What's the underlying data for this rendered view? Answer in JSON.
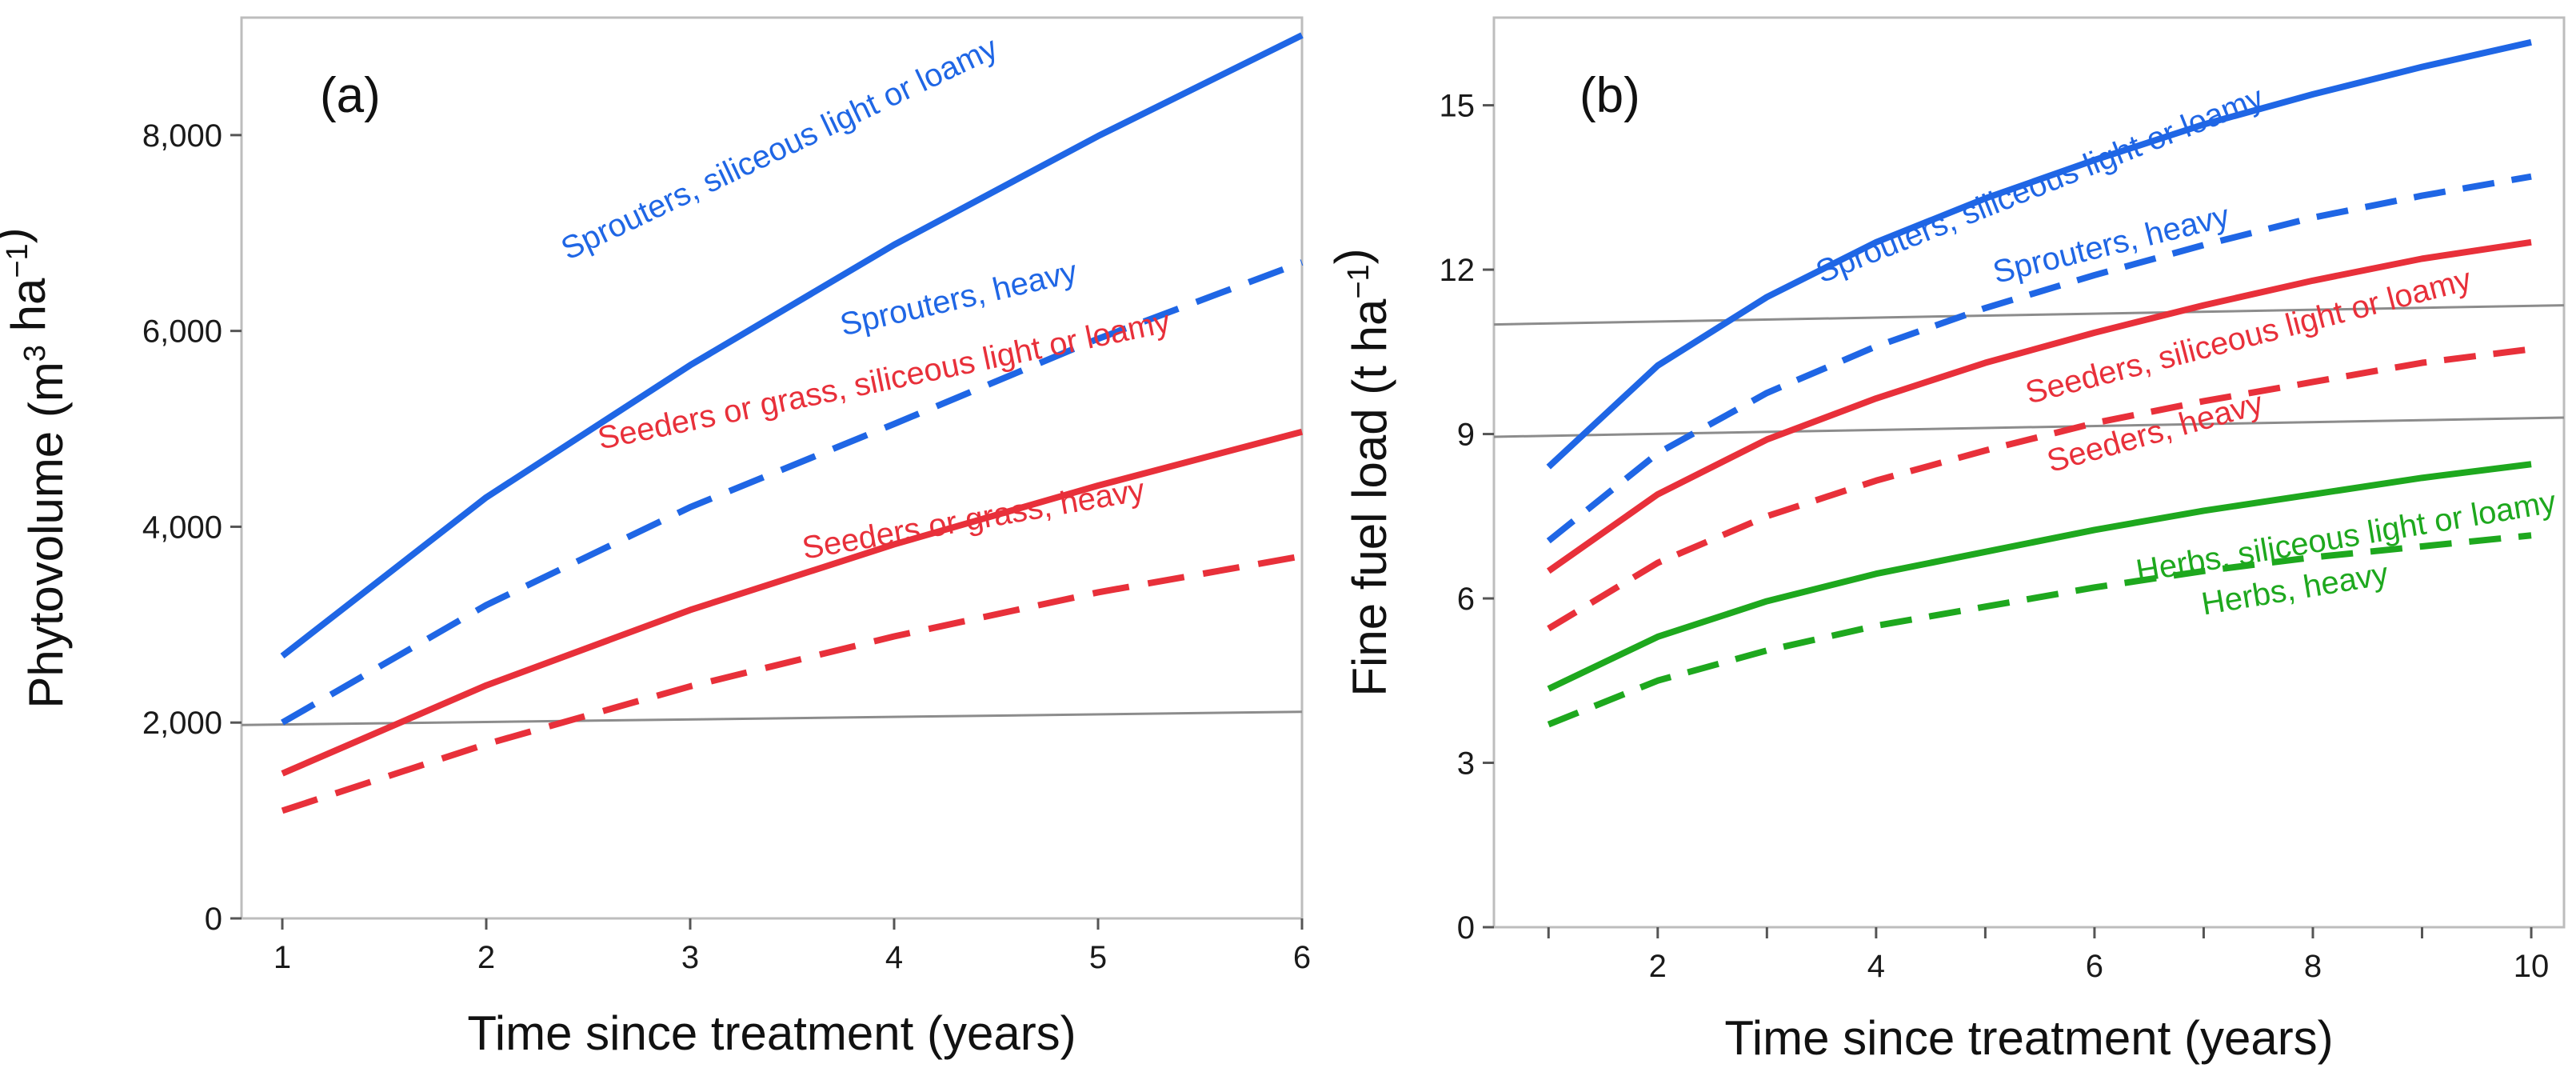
{
  "colors": {
    "blue": "#1f66e5",
    "red": "#e8303a",
    "green": "#1ea81e",
    "reference": "#8c8c8c"
  },
  "chart_data": [
    {
      "id": "a",
      "type": "line",
      "panel_label": "(a)",
      "xlabel": "Time since treatment (years)",
      "ylabel_main": "Phytovolume (m",
      "ylabel_sup1": "3",
      "ylabel_mid": " ha",
      "ylabel_sup2": "−1",
      "ylabel_end": ")",
      "xlim": [
        0.8,
        6
      ],
      "ylim": [
        0,
        9200
      ],
      "xticks": [
        1,
        2,
        3,
        4,
        5,
        6
      ],
      "xtick_labels": [
        "1",
        "2",
        "3",
        "4",
        "5",
        "6"
      ],
      "yticks": [
        0,
        2000,
        4000,
        6000,
        8000
      ],
      "ytick_labels": [
        "0",
        "2,000",
        "4,000",
        "6,000",
        "8,000"
      ],
      "reference_lines": [
        {
          "x": [
            0.8,
            6
          ],
          "y": [
            1975,
            2110
          ]
        }
      ],
      "series": [
        {
          "name": "Sprouters, siliceous light or loamy",
          "color": "blue",
          "dash": false,
          "label_pos": [
            2.4,
            4.85
          ],
          "label_y": [
            6720,
            9140
          ],
          "x": [
            1,
            2,
            3,
            4,
            5,
            6
          ],
          "y": [
            2680,
            4300,
            5650,
            6880,
            7990,
            9020
          ]
        },
        {
          "name": "Sprouters, heavy",
          "color": "blue",
          "dash": true,
          "label_pos": [
            3.75,
            4.85
          ],
          "label_y": [
            5950,
            6480
          ],
          "x": [
            1,
            2,
            3,
            4,
            5,
            6
          ],
          "y": [
            2000,
            3200,
            4200,
            5050,
            5920,
            6700
          ]
        },
        {
          "name": "Seeders or grass, siliceous light or loamy",
          "color": "red",
          "dash": false,
          "label_pos": [
            2.56,
            5.0
          ],
          "label_y": [
            4790,
            5840
          ],
          "x": [
            1,
            2,
            3,
            4,
            5,
            6
          ],
          "y": [
            1480,
            2380,
            3150,
            3820,
            4420,
            4970
          ]
        },
        {
          "name": "Seeders or grass, heavy",
          "color": "red",
          "dash": true,
          "label_pos": [
            3.56,
            5.0
          ],
          "label_y": [
            3670,
            4190
          ],
          "x": [
            1,
            2,
            3,
            4,
            5,
            6
          ],
          "y": [
            1100,
            1780,
            2370,
            2880,
            3330,
            3700
          ]
        }
      ]
    },
    {
      "id": "b",
      "type": "line",
      "panel_label": "(b)",
      "xlabel": "Time since treatment (years)",
      "ylabel_main": "Fine fuel load (t ha",
      "ylabel_sup1": "",
      "ylabel_mid": "",
      "ylabel_sup2": "−1",
      "ylabel_end": ")",
      "xlim": [
        0.5,
        10.3
      ],
      "ylim": [
        0,
        16.6
      ],
      "xticks": [
        1,
        2,
        3,
        4,
        5,
        6,
        7,
        8,
        9,
        10
      ],
      "xtick_labels": [
        "",
        "2",
        "",
        "4",
        "",
        "6",
        "",
        "8",
        "",
        "10"
      ],
      "yticks": [
        0,
        3,
        6,
        9,
        12,
        15
      ],
      "ytick_labels": [
        "0",
        "3",
        "6",
        "9",
        "12",
        "15"
      ],
      "reference_lines": [
        {
          "x": [
            0.5,
            10.3
          ],
          "y": [
            11.0,
            11.35
          ]
        },
        {
          "x": [
            0.5,
            10.3
          ],
          "y": [
            8.95,
            9.3
          ]
        }
      ],
      "series": [
        {
          "name": "Sprouters, siliceous light or loamy",
          "color": "blue",
          "dash": false,
          "label_pos": [
            3.5,
            8.4
          ],
          "label_y": [
            11.75,
            15.65
          ],
          "x": [
            1,
            2,
            3,
            4,
            5,
            6,
            7,
            8,
            9,
            10
          ],
          "y": [
            8.4,
            10.25,
            11.5,
            12.5,
            13.3,
            14.0,
            14.65,
            15.2,
            15.7,
            16.15
          ]
        },
        {
          "name": "Sprouters, heavy",
          "color": "blue",
          "dash": true,
          "label_pos": [
            5.1,
            7.85
          ],
          "label_y": [
            11.75,
            13.1
          ],
          "x": [
            1,
            2,
            3,
            4,
            5,
            6,
            7,
            8,
            9,
            10
          ],
          "y": [
            7.05,
            8.65,
            9.75,
            10.6,
            11.3,
            11.9,
            12.45,
            12.95,
            13.35,
            13.7
          ]
        },
        {
          "name": "Seeders, siliceous light or loamy",
          "color": "red",
          "dash": false,
          "label_pos": [
            5.4,
            9.95
          ],
          "label_y": [
            9.55,
            11.9
          ],
          "x": [
            1,
            2,
            3,
            4,
            5,
            6,
            7,
            8,
            9,
            10
          ],
          "y": [
            6.5,
            7.9,
            8.9,
            9.65,
            10.3,
            10.85,
            11.35,
            11.8,
            12.2,
            12.5
          ]
        },
        {
          "name": "Seeders, heavy",
          "color": "red",
          "dash": true,
          "label_pos": [
            5.6,
            7.75
          ],
          "label_y": [
            8.3,
            9.5
          ],
          "x": [
            1,
            2,
            3,
            4,
            5,
            6,
            7,
            8,
            9,
            10
          ],
          "y": [
            5.45,
            6.65,
            7.5,
            8.15,
            8.7,
            9.2,
            9.6,
            9.95,
            10.3,
            10.55
          ]
        },
        {
          "name": "Herbs, siliceous light or loamy",
          "color": "green",
          "dash": false,
          "label_pos": [
            6.4,
            10.0
          ],
          "label_y": [
            6.3,
            7.5
          ],
          "x": [
            1,
            2,
            3,
            4,
            5,
            6,
            7,
            8,
            9,
            10
          ],
          "y": [
            4.35,
            5.3,
            5.95,
            6.45,
            6.85,
            7.25,
            7.6,
            7.9,
            8.2,
            8.45
          ]
        },
        {
          "name": "Herbs, heavy",
          "color": "green",
          "dash": true,
          "label_pos": [
            7.0,
            8.8
          ],
          "label_y": [
            5.7,
            6.3
          ],
          "x": [
            1,
            2,
            3,
            4,
            5,
            6,
            7,
            8,
            9,
            10
          ],
          "y": [
            3.7,
            4.5,
            5.05,
            5.5,
            5.85,
            6.2,
            6.5,
            6.75,
            6.95,
            7.15
          ]
        }
      ]
    }
  ]
}
